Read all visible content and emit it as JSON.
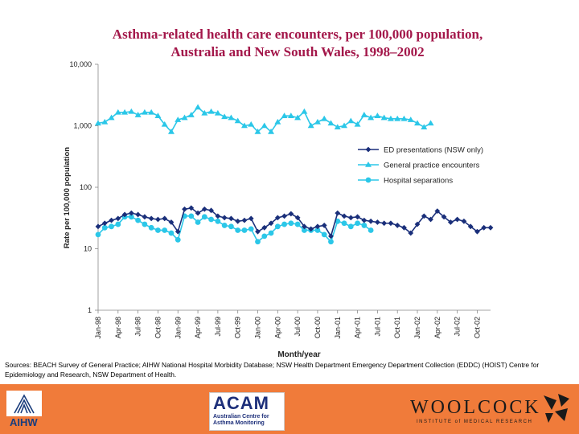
{
  "chart_data": {
    "type": "line",
    "title_line1": "Asthma-related health care encounters, per 100,000 population,",
    "title_line2": "Australia and New South Wales, 1998–2002",
    "xlabel": "Month/year",
    "ylabel": "Rate per 100,000 population",
    "yscale": "log",
    "ylim": [
      1,
      10000
    ],
    "y_ticks": [
      {
        "value": 10000,
        "label": "10,000"
      },
      {
        "value": 1000,
        "label": "1,000"
      },
      {
        "value": 100,
        "label": "100"
      },
      {
        "value": 10,
        "label": "10"
      },
      {
        "value": 1,
        "label": "1"
      }
    ],
    "x_tick_labels": [
      "Jan-98",
      "Apr-98",
      "Jul-98",
      "Oct-98",
      "Jan-99",
      "Apr-99",
      "Jul-99",
      "Oct-99",
      "Jan-00",
      "Apr-00",
      "Jul-00",
      "Oct-00",
      "Jan-01",
      "Apr-01",
      "Jul-01",
      "Oct-01",
      "Jan-02",
      "Apr-02",
      "Jul-02",
      "Oct-02"
    ],
    "x_tick_months": [
      0,
      3,
      6,
      9,
      12,
      15,
      18,
      21,
      24,
      27,
      30,
      33,
      36,
      39,
      42,
      45,
      48,
      51,
      54,
      57
    ],
    "legend_position": "right",
    "series": [
      {
        "name": "ED presentations (NSW only)",
        "color": "#1a2f7a",
        "marker": "diamond",
        "months": [
          0,
          1,
          2,
          3,
          4,
          5,
          6,
          7,
          8,
          9,
          10,
          11,
          12,
          13,
          14,
          15,
          16,
          17,
          18,
          19,
          20,
          21,
          22,
          23,
          24,
          25,
          26,
          27,
          28,
          29,
          30,
          31,
          32,
          33,
          34,
          35,
          36,
          37,
          38,
          39,
          40,
          41,
          42,
          43,
          44,
          45,
          46,
          47,
          48,
          49,
          50,
          51,
          52,
          53,
          54,
          55,
          56,
          57,
          58,
          59
        ],
        "values": [
          23,
          26,
          29,
          31,
          36,
          38,
          36,
          33,
          31,
          30,
          31,
          27,
          19,
          44,
          46,
          38,
          44,
          42,
          34,
          32,
          31,
          28,
          29,
          31,
          19,
          22,
          26,
          32,
          34,
          37,
          32,
          23,
          21,
          23,
          24,
          16,
          38,
          34,
          32,
          33,
          29,
          28,
          27,
          26,
          26,
          24,
          22,
          18,
          25,
          34,
          30,
          41,
          33,
          27,
          30,
          28,
          23,
          19,
          22,
          22
        ]
      },
      {
        "name": "General practice encounters",
        "color": "#2bc7e8",
        "marker": "triangle",
        "months": [
          0,
          1,
          2,
          3,
          4,
          5,
          6,
          7,
          8,
          9,
          10,
          11,
          12,
          13,
          14,
          15,
          16,
          17,
          18,
          19,
          20,
          21,
          22,
          23,
          24,
          25,
          26,
          27,
          28,
          29,
          30,
          31,
          32,
          33,
          34,
          35,
          36,
          37,
          38,
          39,
          40,
          41,
          42,
          43,
          44,
          45,
          46,
          47,
          48,
          49,
          50
        ],
        "values": [
          1100,
          1150,
          1350,
          1650,
          1650,
          1700,
          1500,
          1650,
          1650,
          1450,
          1050,
          800,
          1250,
          1350,
          1500,
          2000,
          1600,
          1700,
          1600,
          1400,
          1350,
          1200,
          1000,
          1050,
          800,
          1000,
          800,
          1150,
          1450,
          1450,
          1350,
          1700,
          1000,
          1150,
          1300,
          1100,
          950,
          1000,
          1200,
          1050,
          1500,
          1350,
          1450,
          1350,
          1300,
          1300,
          1300,
          1250,
          1100,
          950,
          1100
        ]
      },
      {
        "name": "Hospital separations",
        "color": "#2bc7e8",
        "marker": "circle",
        "months": [
          0,
          1,
          2,
          3,
          4,
          5,
          6,
          7,
          8,
          9,
          10,
          11,
          12,
          13,
          14,
          15,
          16,
          17,
          18,
          19,
          20,
          21,
          22,
          23,
          24,
          25,
          26,
          27,
          28,
          29,
          30,
          31,
          32,
          33,
          34,
          35,
          36,
          37,
          38,
          39,
          40,
          41
        ],
        "values": [
          17,
          22,
          23,
          25,
          33,
          33,
          29,
          25,
          22,
          20,
          20,
          18,
          14,
          34,
          34,
          27,
          33,
          30,
          28,
          24,
          23,
          20,
          20,
          21,
          13,
          16,
          18,
          23,
          25,
          26,
          25,
          20,
          20,
          20,
          17,
          13,
          28,
          26,
          23,
          26,
          24,
          20
        ]
      }
    ]
  },
  "sources": {
    "text": "Sources: BEACH Survey of General Practice; AIHW National Hospital Morbidity Database; NSW Health Department Emergency Department Collection (EDDC) (HOIST) Centre for Epidemiology and Research, NSW Department of Health."
  },
  "logos": {
    "aihw": "AIHW",
    "acam_big": "ACAM",
    "acam_small": "Australian Centre for Asthma Monitoring",
    "woolcock_big": "WOOLCOCK",
    "woolcock_small": "INSTITUTE of MEDICAL RESEARCH"
  },
  "colors": {
    "title": "#a3174a",
    "footer": "#f07b3a"
  }
}
